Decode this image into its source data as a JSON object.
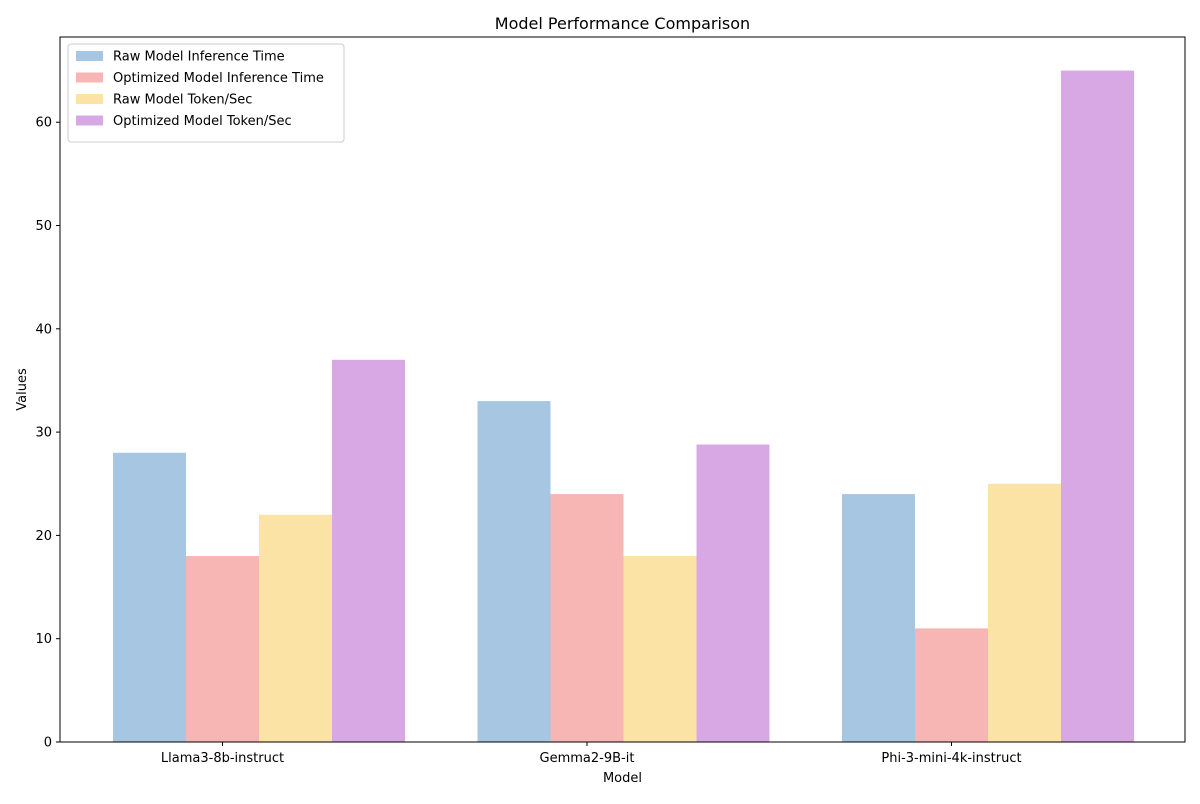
{
  "chart_data": {
    "type": "bar",
    "title": "Model Performance Comparison",
    "xlabel": "Model",
    "ylabel": "Values",
    "categories": [
      "Llama3-8b-instruct",
      "Gemma2-9B-it",
      "Phi-3-mini-4k-instruct"
    ],
    "series": [
      {
        "name": "Raw Model Inference Time",
        "color": "#a6c6e1",
        "values": [
          28,
          33,
          24
        ]
      },
      {
        "name": "Optimized Model Inference Time",
        "color": "#f7b5b4",
        "values": [
          18,
          24,
          11
        ]
      },
      {
        "name": "Raw Model Token/Sec",
        "color": "#fbe3a6",
        "values": [
          22,
          18,
          25
        ]
      },
      {
        "name": "Optimized Model Token/Sec",
        "color": "#d8a8e5",
        "values": [
          37,
          28.8,
          65
        ]
      }
    ],
    "ylim": [
      0,
      68.25
    ],
    "yticks": [
      "0",
      "10",
      "20",
      "30",
      "40",
      "50",
      "60"
    ],
    "grid": false,
    "legend_position": "top-left"
  }
}
